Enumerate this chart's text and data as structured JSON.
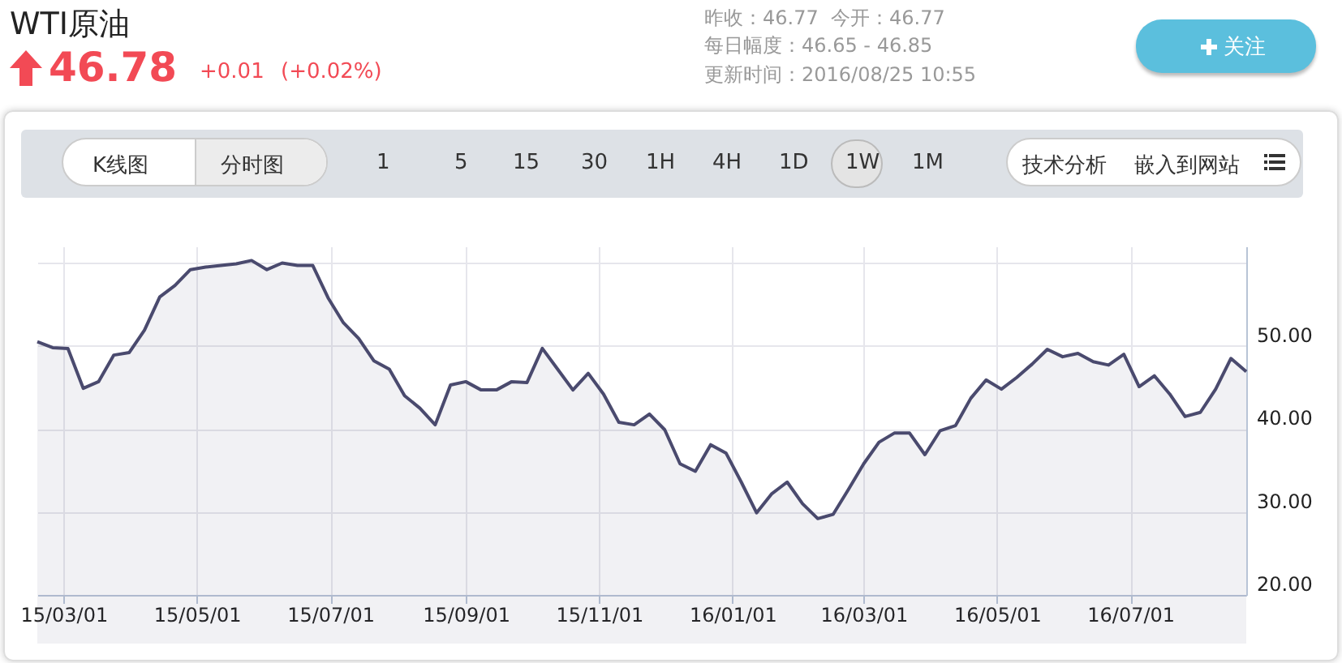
{
  "chart_data": {
    "type": "area",
    "title": "WTI原油",
    "annotations": [
      "46.78",
      "+0.01",
      "(+0.02%)",
      "昨收：46.77",
      "今开：46.77",
      "每日幅度：46.65 - 46.85",
      "更新时间：2016/08/25 10:55",
      "关注",
      "K线图",
      "分时图",
      "1",
      "5",
      "15",
      "30",
      "1H",
      "4H",
      "1D",
      "1W",
      "1M",
      "技术分析",
      "嵌入到网站"
    ],
    "x": [
      "2015-02-17",
      "2015-02-24",
      "2015-03-03",
      "2015-03-10",
      "2015-03-17",
      "2015-03-24",
      "2015-03-31",
      "2015-04-07",
      "2015-04-14",
      "2015-04-21",
      "2015-04-28",
      "2015-05-05",
      "2015-05-12",
      "2015-05-19",
      "2015-05-26",
      "2015-06-02",
      "2015-06-09",
      "2015-06-16",
      "2015-06-23",
      "2015-06-30",
      "2015-07-07",
      "2015-07-14",
      "2015-07-21",
      "2015-07-28",
      "2015-08-04",
      "2015-08-11",
      "2015-08-18",
      "2015-08-25",
      "2015-09-01",
      "2015-09-08",
      "2015-09-15",
      "2015-09-22",
      "2015-09-29",
      "2015-10-06",
      "2015-10-13",
      "2015-10-20",
      "2015-10-27",
      "2015-11-03",
      "2015-11-10",
      "2015-11-17",
      "2015-11-24",
      "2015-12-01",
      "2015-12-08",
      "2015-12-15",
      "2015-12-22",
      "2015-12-29",
      "2016-01-05",
      "2016-01-12",
      "2016-01-19",
      "2016-01-26",
      "2016-02-02",
      "2016-02-09",
      "2016-02-16",
      "2016-02-23",
      "2016-03-01",
      "2016-03-08",
      "2016-03-15",
      "2016-03-22",
      "2016-03-29",
      "2016-04-05",
      "2016-04-12",
      "2016-04-19",
      "2016-04-26",
      "2016-05-03",
      "2016-05-10",
      "2016-05-17",
      "2016-05-24",
      "2016-05-31",
      "2016-06-07",
      "2016-06-14",
      "2016-06-21",
      "2016-06-28",
      "2016-07-05",
      "2016-07-12",
      "2016-07-19",
      "2016-07-26",
      "2016-08-02",
      "2016-08-09",
      "2016-08-16",
      "2016-08-23"
    ],
    "series": [
      {
        "color": "#4a4a6e",
        "values": [
          50.5,
          49.8,
          49.7,
          44.9,
          45.7,
          48.9,
          49.2,
          51.9,
          55.9,
          57.3,
          59.2,
          59.5,
          59.7,
          59.9,
          60.3,
          59.2,
          60.0,
          59.7,
          59.7,
          55.8,
          52.8,
          50.9,
          48.2,
          47.2,
          44.0,
          42.5,
          40.5,
          45.3,
          45.7,
          44.7,
          44.7,
          45.7,
          45.6,
          49.7,
          47.2,
          44.7,
          46.7,
          44.2,
          40.8,
          40.5,
          41.8,
          39.9,
          35.8,
          34.9,
          38.1,
          37.1,
          33.6,
          29.9,
          32.2,
          33.6,
          31.0,
          29.2,
          29.7,
          32.7,
          35.8,
          38.4,
          39.5,
          39.5,
          36.9,
          39.8,
          40.4,
          43.7,
          45.9,
          44.8,
          46.2,
          47.8,
          49.6,
          48.7,
          49.1,
          48.1,
          47.7,
          49.0,
          45.1,
          46.4,
          44.2,
          41.5,
          42.0,
          44.8,
          48.5,
          46.9
        ]
      }
    ],
    "xlim": [
      "2015-02-17",
      "2016-08-23"
    ],
    "xticks": [
      {
        "value": "2015-03-01",
        "label": "15/03/01"
      },
      {
        "value": "2015-05-01",
        "label": "15/05/01"
      },
      {
        "value": "2015-07-01",
        "label": "15/07/01"
      },
      {
        "value": "2015-09-01",
        "label": "15/09/01"
      },
      {
        "value": "2015-11-01",
        "label": "15/11/01"
      },
      {
        "value": "2016-01-01",
        "label": "16/01/01"
      },
      {
        "value": "2016-03-01",
        "label": "16/03/01"
      },
      {
        "value": "2016-05-01",
        "label": "16/05/01"
      },
      {
        "value": "2016-07-01",
        "label": "16/07/01"
      }
    ],
    "ylim": [
      20,
      62
    ],
    "yticks": [
      {
        "value": 20,
        "label": "20.00"
      },
      {
        "value": 30,
        "label": "30.00"
      },
      {
        "value": 40,
        "label": "40.00"
      },
      {
        "value": 50,
        "label": "50.00"
      },
      {
        "value": 60,
        "label": null
      }
    ],
    "grid": true
  }
}
